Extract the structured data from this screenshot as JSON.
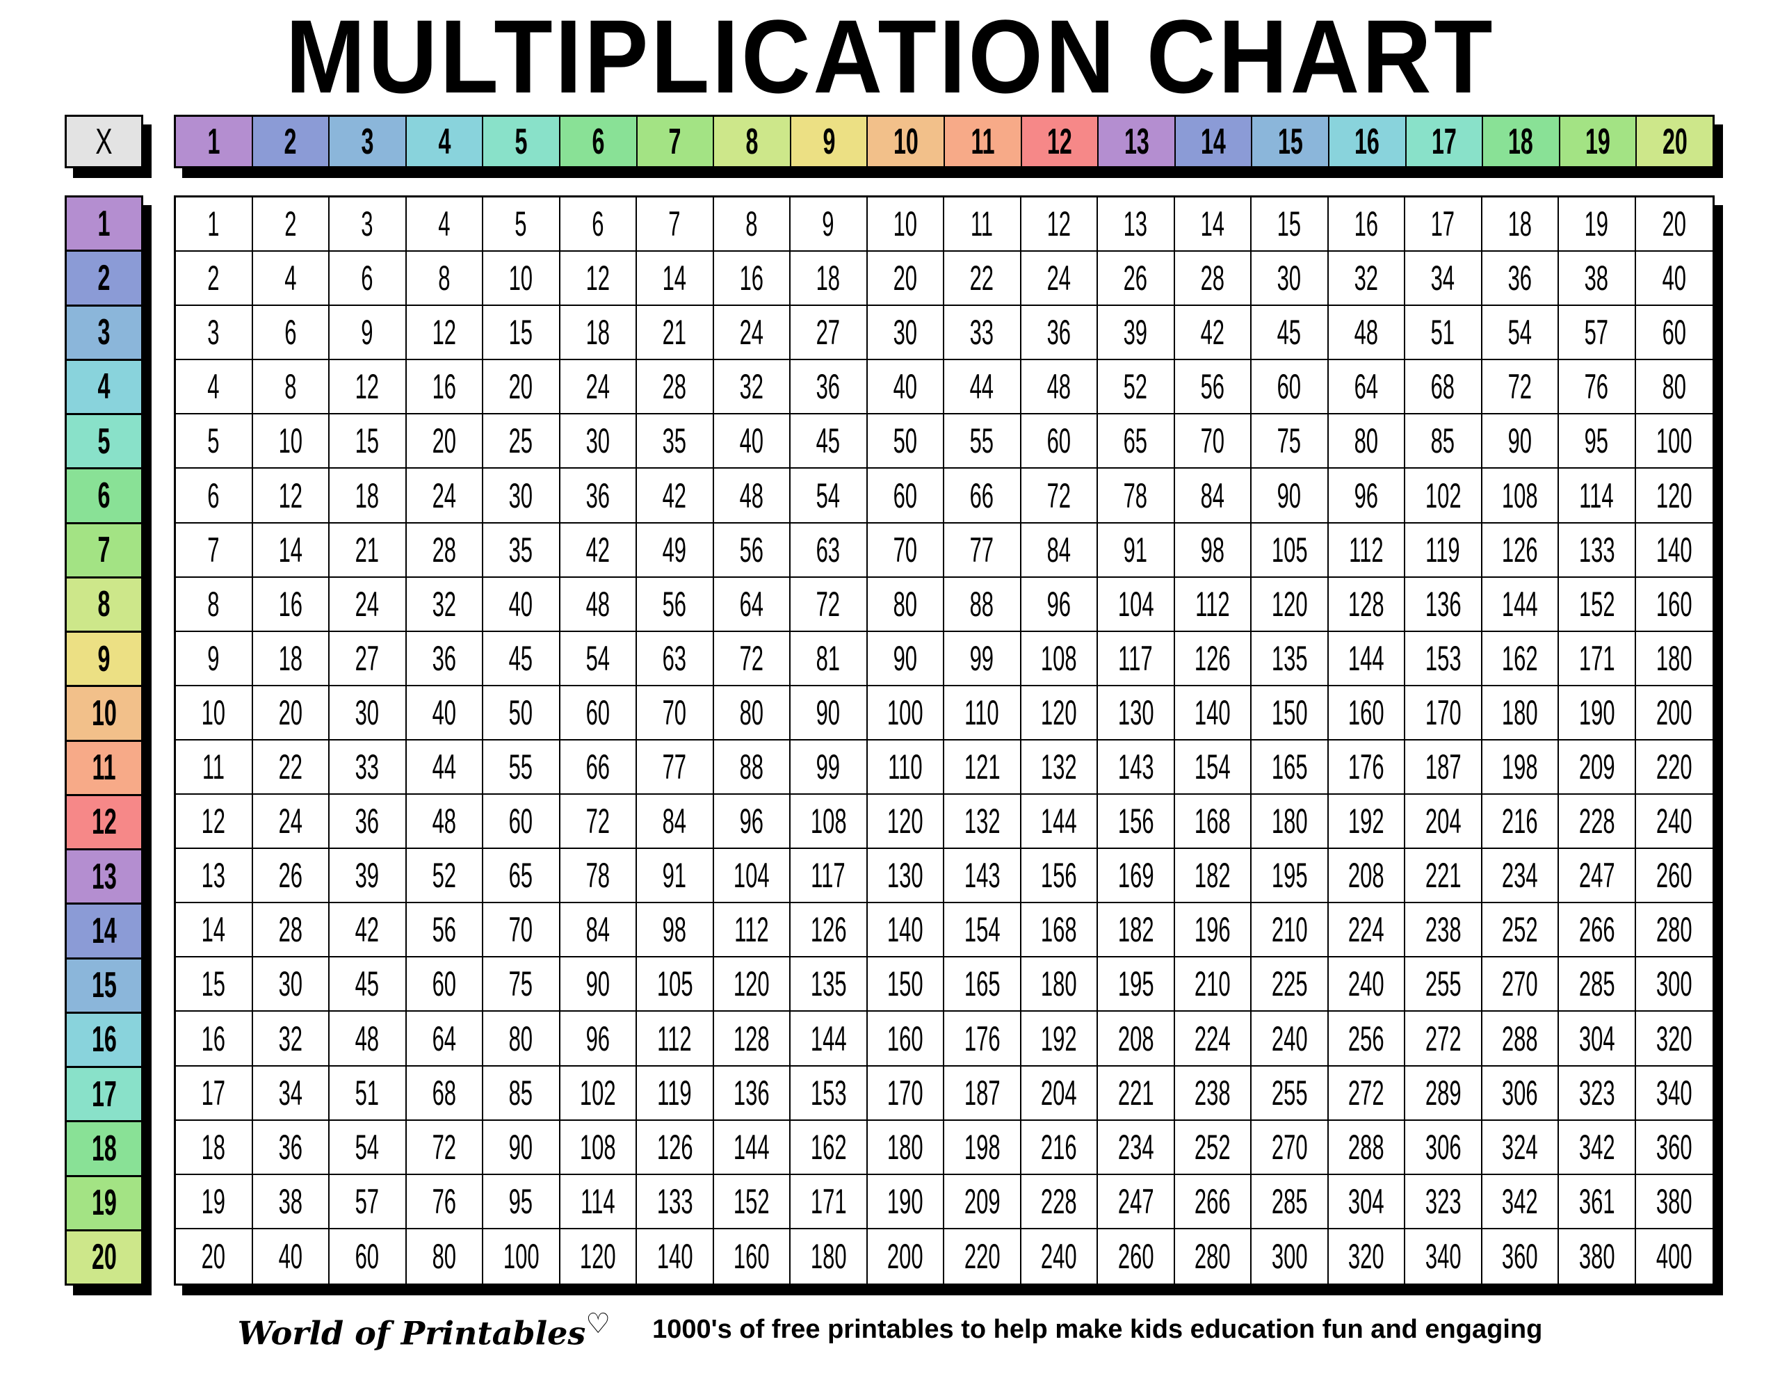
{
  "title": "MULTIPLICATION CHART",
  "corner_label": "X",
  "colors": [
    "#b48ed0",
    "#8b9bd6",
    "#8bb6da",
    "#89d3dc",
    "#89e1c9",
    "#89e196",
    "#a3e384",
    "#cde78a",
    "#ece084",
    "#f2c08a",
    "#f7aa88",
    "#f68888"
  ],
  "corner_color": "#e3e3e3",
  "footer": {
    "brand": "World of Printables",
    "brand_icon": "heart-icon",
    "tagline": "1000's of free printables to help make kids education fun and engaging"
  },
  "chart_data": {
    "type": "table",
    "columns": [
      "1",
      "2",
      "3",
      "4",
      "5",
      "6",
      "7",
      "8",
      "9",
      "10",
      "11",
      "12",
      "13",
      "14",
      "15",
      "16",
      "17",
      "18",
      "19",
      "20"
    ],
    "rows": [
      "1",
      "2",
      "3",
      "4",
      "5",
      "6",
      "7",
      "8",
      "9",
      "10",
      "11",
      "12",
      "13",
      "14",
      "15",
      "16",
      "17",
      "18",
      "19",
      "20"
    ],
    "cells": [
      [
        1,
        2,
        3,
        4,
        5,
        6,
        7,
        8,
        9,
        10,
        11,
        12,
        13,
        14,
        15,
        16,
        17,
        18,
        19,
        20
      ],
      [
        2,
        4,
        6,
        8,
        10,
        12,
        14,
        16,
        18,
        20,
        22,
        24,
        26,
        28,
        30,
        32,
        34,
        36,
        38,
        40
      ],
      [
        3,
        6,
        9,
        12,
        15,
        18,
        21,
        24,
        27,
        30,
        33,
        36,
        39,
        42,
        45,
        48,
        51,
        54,
        57,
        60
      ],
      [
        4,
        8,
        12,
        16,
        20,
        24,
        28,
        32,
        36,
        40,
        44,
        48,
        52,
        56,
        60,
        64,
        68,
        72,
        76,
        80
      ],
      [
        5,
        10,
        15,
        20,
        25,
        30,
        35,
        40,
        45,
        50,
        55,
        60,
        65,
        70,
        75,
        80,
        85,
        90,
        95,
        100
      ],
      [
        6,
        12,
        18,
        24,
        30,
        36,
        42,
        48,
        54,
        60,
        66,
        72,
        78,
        84,
        90,
        96,
        102,
        108,
        114,
        120
      ],
      [
        7,
        14,
        21,
        28,
        35,
        42,
        49,
        56,
        63,
        70,
        77,
        84,
        91,
        98,
        105,
        112,
        119,
        126,
        133,
        140
      ],
      [
        8,
        16,
        24,
        32,
        40,
        48,
        56,
        64,
        72,
        80,
        88,
        96,
        104,
        112,
        120,
        128,
        136,
        144,
        152,
        160
      ],
      [
        9,
        18,
        27,
        36,
        45,
        54,
        63,
        72,
        81,
        90,
        99,
        108,
        117,
        126,
        135,
        144,
        153,
        162,
        171,
        180
      ],
      [
        10,
        20,
        30,
        40,
        50,
        60,
        70,
        80,
        90,
        100,
        110,
        120,
        130,
        140,
        150,
        160,
        170,
        180,
        190,
        200
      ],
      [
        11,
        22,
        33,
        44,
        55,
        66,
        77,
        88,
        99,
        110,
        121,
        132,
        143,
        154,
        165,
        176,
        187,
        198,
        209,
        220
      ],
      [
        12,
        24,
        36,
        48,
        60,
        72,
        84,
        96,
        108,
        120,
        132,
        144,
        156,
        168,
        180,
        192,
        204,
        216,
        228,
        240
      ],
      [
        13,
        26,
        39,
        52,
        65,
        78,
        91,
        104,
        117,
        130,
        143,
        156,
        169,
        182,
        195,
        208,
        221,
        234,
        247,
        260
      ],
      [
        14,
        28,
        42,
        56,
        70,
        84,
        98,
        112,
        126,
        140,
        154,
        168,
        182,
        196,
        210,
        224,
        238,
        252,
        266,
        280
      ],
      [
        15,
        30,
        45,
        60,
        75,
        90,
        105,
        120,
        135,
        150,
        165,
        180,
        195,
        210,
        225,
        240,
        255,
        270,
        285,
        300
      ],
      [
        16,
        32,
        48,
        64,
        80,
        96,
        112,
        128,
        144,
        160,
        176,
        192,
        208,
        224,
        240,
        256,
        272,
        288,
        304,
        320
      ],
      [
        17,
        34,
        51,
        68,
        85,
        102,
        119,
        136,
        153,
        170,
        187,
        204,
        221,
        238,
        255,
        272,
        289,
        306,
        323,
        340
      ],
      [
        18,
        36,
        54,
        72,
        90,
        108,
        126,
        144,
        162,
        180,
        198,
        216,
        234,
        252,
        270,
        288,
        306,
        324,
        342,
        360
      ],
      [
        19,
        38,
        57,
        76,
        95,
        114,
        133,
        152,
        171,
        190,
        209,
        228,
        247,
        266,
        285,
        304,
        323,
        342,
        361,
        380
      ],
      [
        20,
        40,
        60,
        80,
        100,
        120,
        140,
        160,
        180,
        200,
        220,
        240,
        260,
        280,
        300,
        320,
        340,
        360,
        380,
        400
      ]
    ]
  }
}
